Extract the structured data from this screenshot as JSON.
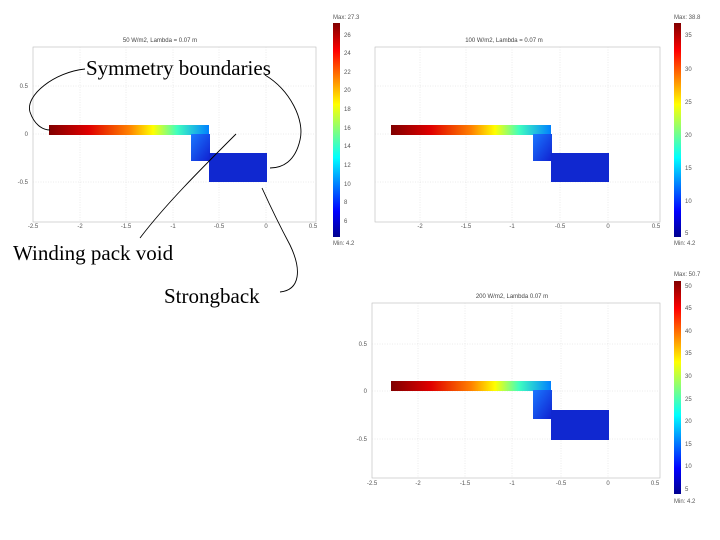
{
  "annotations": {
    "symmetry": "Symmetry boundaries",
    "winding": "Winding pack void",
    "strongback": "Strongback"
  },
  "panels": [
    {
      "title": "50 W/m2, Lambda = 0.07 m",
      "x_ticks": [
        "-2.5",
        "-2",
        "-1.5",
        "-1",
        "-0.5",
        "0",
        "0.5"
      ],
      "y_ticks": [
        "0.5",
        "0",
        "-0.5"
      ],
      "colorbar": {
        "max_label": "Max: 27.3",
        "min_label": "Min: 4.2",
        "ticks": [
          "26",
          "24",
          "22",
          "20",
          "18",
          "16",
          "14",
          "12",
          "10",
          "8",
          "6"
        ]
      }
    },
    {
      "title": "100 W/m2, Lambda = 0.07 m",
      "x_ticks": [
        "-2",
        "-1.5",
        "-1",
        "-0.5",
        "0",
        "0.5"
      ],
      "y_ticks": [],
      "colorbar": {
        "max_label": "Max: 38.8",
        "min_label": "Min: 4.2",
        "ticks": [
          "35",
          "30",
          "25",
          "20",
          "15",
          "10",
          "5"
        ]
      }
    },
    {
      "title": "200 W/m2, Lambda 0.07 m",
      "x_ticks": [
        "-2.5",
        "-2",
        "-1.5",
        "-1",
        "-0.5",
        "0",
        "0.5"
      ],
      "y_ticks": [
        "0.5",
        "0",
        "-0.5"
      ],
      "colorbar": {
        "max_label": "Max: 50.7",
        "min_label": "Min: 4.2",
        "ticks": [
          "50",
          "45",
          "40",
          "35",
          "30",
          "25",
          "20",
          "15",
          "10",
          "5"
        ]
      }
    }
  ],
  "colors": {
    "jet": [
      "#00008f",
      "#0000ff",
      "#00ffff",
      "#ffff00",
      "#ff0000",
      "#800000"
    ],
    "box_fill": "#1030d8",
    "label_color": "#000000"
  }
}
